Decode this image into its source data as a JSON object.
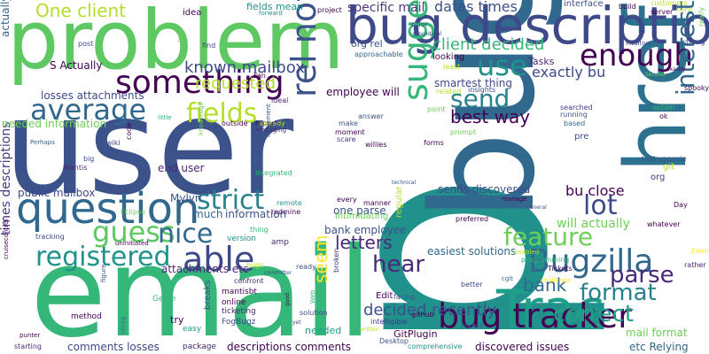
{
  "words": [
    {
      "id": "p",
      "text": "p",
      "color": "#21918c"
    },
    {
      "id": "user",
      "text": "user",
      "color": "#3b528b"
    },
    {
      "id": "email",
      "text": "email",
      "color": "#35b779"
    },
    {
      "id": "bug",
      "text": "bug",
      "color": "#31688e"
    },
    {
      "id": "problem",
      "text": "problem",
      "color": "#5ec962"
    },
    {
      "id": "href",
      "text": "href",
      "color": "#2c728e"
    },
    {
      "id": "bug-description",
      "text": "bug description",
      "color": "#3e4989"
    },
    {
      "id": "trac",
      "text": "Trac",
      "color": "#1f9e89"
    },
    {
      "id": "question",
      "text": "question",
      "color": "#31688e"
    },
    {
      "id": "bug-tracker",
      "text": "bug tracker",
      "color": "#440154"
    },
    {
      "id": "bugzilla",
      "text": "Bugzilla",
      "color": "#31688e"
    },
    {
      "id": "suggestions",
      "text": "suggestions",
      "color": "#35b779"
    },
    {
      "id": "rel-nofollow",
      "text": "rel nofollow",
      "color": "#3b528b"
    },
    {
      "id": "something",
      "text": "something",
      "color": "#440154"
    },
    {
      "id": "average",
      "text": "average",
      "color": "#31688e"
    },
    {
      "id": "able",
      "text": "able",
      "color": "#3e4989"
    },
    {
      "id": "registered",
      "text": "registered",
      "color": "#21918c"
    },
    {
      "id": "guess",
      "text": "guess",
      "color": "#5ec962"
    },
    {
      "id": "strict",
      "text": "strict",
      "color": "#26828e"
    },
    {
      "id": "nice",
      "text": "nice",
      "color": "#31688e"
    },
    {
      "id": "fields",
      "text": "fields",
      "color": "#b5de2b"
    },
    {
      "id": "enough",
      "text": "enough",
      "color": "#440154"
    },
    {
      "id": "use",
      "text": "use",
      "color": "#21918c"
    },
    {
      "id": "interested",
      "text": "interested",
      "color": "#31688e"
    },
    {
      "id": "lot",
      "text": "lot",
      "color": "#3e4989"
    },
    {
      "id": "send",
      "text": "send",
      "color": "#26828e"
    },
    {
      "id": "feature",
      "text": "feature",
      "color": "#6ece58"
    },
    {
      "id": "parse",
      "text": "parse",
      "color": "#482878"
    },
    {
      "id": "format",
      "text": "format",
      "color": "#26828e"
    },
    {
      "id": "correct",
      "text": "correct",
      "color": "#1f9e89"
    },
    {
      "id": "hear",
      "text": "hear",
      "color": "#482878"
    },
    {
      "id": "best-way",
      "text": "best way",
      "color": "#440154"
    },
    {
      "id": "one-client",
      "text": "One client",
      "color": "#b5de2b"
    },
    {
      "id": "bank",
      "text": "bank",
      "color": "#31688e"
    },
    {
      "id": "letters",
      "text": "letters",
      "color": "#482878"
    },
    {
      "id": "seem",
      "text": "seem",
      "color": "#fde725"
    },
    {
      "id": "decided-recently",
      "text": "decided recently",
      "color": "#3b528b"
    },
    {
      "id": "client-decided",
      "text": "client decided",
      "color": "#35b779"
    },
    {
      "id": "known-mailbox",
      "text": "known mailbox",
      "color": "#3e4989"
    },
    {
      "id": "requested",
      "text": "requested",
      "color": "#b5de2b"
    },
    {
      "id": "dates-times",
      "text": "dates times",
      "color": "#3b528b"
    },
    {
      "id": "specific-mail",
      "text": "specific mail",
      "color": "#443983"
    },
    {
      "id": "exactly-bu",
      "text": "exactly bu",
      "color": "#3e4989"
    },
    {
      "id": "bu-close",
      "text": "bu close",
      "color": "#440154"
    },
    {
      "id": "will-actually",
      "text": "will actually",
      "color": "#6ece58"
    },
    {
      "id": "sends-discovered",
      "text": "sends discovered",
      "color": "#3e4989"
    },
    {
      "id": "smartest-thing",
      "text": "smartest thing",
      "color": "#3e4989"
    },
    {
      "id": "easiest-solutions",
      "text": "easiest solutions",
      "color": "#31688e"
    },
    {
      "id": "discovered-issues",
      "text": "discovered issues",
      "color": "#440154"
    },
    {
      "id": "etc-relying",
      "text": "etc Relying",
      "color": "#31688e"
    },
    {
      "id": "mail-format",
      "text": "mail format",
      "color": "#6ece58"
    },
    {
      "id": "descriptions-comments",
      "text": "descriptions comments",
      "color": "#440154"
    },
    {
      "id": "comments-losses",
      "text": "comments losses",
      "color": "#3e4989"
    },
    {
      "id": "times-descriptions",
      "text": "times descriptions",
      "color": "#443983"
    },
    {
      "id": "actually-look",
      "text": "actually look",
      "color": "#31688e"
    },
    {
      "id": "losses-attachments",
      "text": "losses attachments",
      "color": "#3e4989"
    },
    {
      "id": "public-mailbox",
      "text": "public mailbox",
      "color": "#3e4989"
    },
    {
      "id": "attachments-etc",
      "text": "attachments etc",
      "color": "#482878"
    },
    {
      "id": "bank-employee",
      "text": "bank employee",
      "color": "#3b528b"
    },
    {
      "id": "employee-will",
      "text": "employee will",
      "color": "#440154"
    },
    {
      "id": "one-parse",
      "text": "one parse",
      "color": "#3b528b"
    },
    {
      "id": "end-user",
      "text": "end user",
      "color": "#482878"
    },
    {
      "id": "mylyn",
      "text": "Mylyn",
      "color": "#3b528b"
    },
    {
      "id": "much",
      "text": "much",
      "color": "#31688e"
    },
    {
      "id": "information",
      "text": "information",
      "color": "#3b528b"
    },
    {
      "id": "needed-information",
      "text": "needed information",
      "color": "#6ece58"
    },
    {
      "id": "s-actually",
      "text": "S Actually",
      "color": "#440154"
    },
    {
      "id": "tasks",
      "text": "Tasks",
      "color": "#482878"
    },
    {
      "id": "looking",
      "text": "looking",
      "color": "#440154"
    },
    {
      "id": "org-rel",
      "text": "org rel",
      "color": "#3b528b"
    },
    {
      "id": "fields-mean",
      "text": "fields mean",
      "color": "#21918c"
    },
    {
      "id": "gitplugin",
      "text": "GitPlugin",
      "color": "#440154"
    },
    {
      "id": "needed",
      "text": "needed",
      "color": "#1f9e89"
    },
    {
      "id": "idea",
      "text": "idea",
      "color": "#440154"
    },
    {
      "id": "interface",
      "text": "interface",
      "color": "#3b528b"
    },
    {
      "id": "pre",
      "text": "pre",
      "color": "#3e4989"
    },
    {
      "id": "ci",
      "text": "CI",
      "color": "#31688e"
    },
    {
      "id": "org",
      "text": "org",
      "color": "#443983"
    },
    {
      "id": "git",
      "text": "git",
      "color": "#b5de2b"
    },
    {
      "id": "thebuggenie",
      "text": "thebuggenie",
      "color": "#3b528b"
    },
    {
      "id": "whatever",
      "text": "whatever",
      "color": "#440154"
    },
    {
      "id": "edit",
      "text": "Edit",
      "color": "#440154"
    },
    {
      "id": "method",
      "text": "method",
      "color": "#440154"
    },
    {
      "id": "mantisbt",
      "text": "mantisbt",
      "color": "#440154"
    },
    {
      "id": "online",
      "text": "online",
      "color": "#440154"
    },
    {
      "id": "ticketing",
      "text": "ticketing",
      "color": "#482878"
    },
    {
      "id": "fogbugz",
      "text": "FogBugz",
      "color": "#3e4989"
    },
    {
      "id": "genie",
      "text": "Genie",
      "color": "#35b779"
    },
    {
      "id": "package",
      "text": "package",
      "color": "#482878"
    },
    {
      "id": "amp",
      "text": "amp",
      "color": "#482878"
    },
    {
      "id": "version",
      "text": "version",
      "color": "#21918c"
    },
    {
      "id": "confront",
      "text": "confront",
      "color": "#482878"
    },
    {
      "id": "starting",
      "text": "starting",
      "color": "#482878"
    },
    {
      "id": "tickets",
      "text": "Tickets",
      "color": "#440154"
    },
    {
      "id": "programming",
      "text": "programming",
      "color": "#35b779"
    },
    {
      "id": "intimidating",
      "text": "intimidating",
      "color": "#6ece58"
    },
    {
      "id": "redmine",
      "text": "redmine",
      "color": "#440154"
    },
    {
      "id": "solution",
      "text": "solution",
      "color": "#3e4989"
    },
    {
      "id": "better",
      "text": "better",
      "color": "#3e4989"
    },
    {
      "id": "please",
      "text": "please",
      "color": "#31688e"
    },
    {
      "id": "comprehensive",
      "text": "comprehensive",
      "color": "#21918c"
    },
    {
      "id": "desktop",
      "text": "Desktop",
      "color": "#3b528b"
    },
    {
      "id": "intelligible",
      "text": "intelligible",
      "color": "#443983"
    },
    {
      "id": "post",
      "text": "post",
      "color": "#3e4989"
    },
    {
      "id": "eclipse",
      "text": "Eclipse",
      "color": "#6ece58"
    },
    {
      "id": "spooky",
      "text": "spooky",
      "color": "#440154"
    },
    {
      "id": "rather",
      "text": "rather",
      "color": "#482878"
    },
    {
      "id": "even",
      "text": "Even",
      "color": "#fde725"
    },
    {
      "id": "day",
      "text": "Day",
      "color": "#440154"
    },
    {
      "id": "option",
      "text": "option",
      "color": "#35b779"
    },
    {
      "id": "ok",
      "text": "ok",
      "color": "#440154"
    },
    {
      "id": "searched",
      "text": "searched",
      "color": "#443983"
    },
    {
      "id": "running",
      "text": "running",
      "color": "#3b528b"
    },
    {
      "id": "based",
      "text": "based",
      "color": "#31688e"
    },
    {
      "id": "answer",
      "text": "answer",
      "color": "#3b528b"
    },
    {
      "id": "make",
      "text": "make",
      "color": "#3b528b"
    },
    {
      "id": "moment",
      "text": "moment",
      "color": "#440154"
    },
    {
      "id": "scare",
      "text": "scare",
      "color": "#443983"
    },
    {
      "id": "forms",
      "text": "forms",
      "color": "#440154"
    },
    {
      "id": "prompt",
      "text": "prompt",
      "color": "#6ece58"
    },
    {
      "id": "point",
      "text": "point",
      "color": "#6ece58"
    },
    {
      "id": "insights",
      "text": "insights",
      "color": "#3e4989"
    },
    {
      "id": "related",
      "text": "related",
      "color": "#b5de2b"
    },
    {
      "id": "least",
      "text": "least",
      "color": "#b5de2b"
    },
    {
      "id": "approachable",
      "text": "approachable",
      "color": "#31688e"
    },
    {
      "id": "project",
      "text": "project",
      "color": "#440154"
    },
    {
      "id": "prior",
      "text": "prior",
      "color": "#3b528b"
    },
    {
      "id": "procedural",
      "text": "procedural",
      "color": "#3e4989"
    },
    {
      "id": "build",
      "text": "build",
      "color": "#440154"
    },
    {
      "id": "customers",
      "text": "customers",
      "color": "#b5de2b"
    },
    {
      "id": "server",
      "text": "server",
      "color": "#440154"
    },
    {
      "id": "strong",
      "text": "strong",
      "color": "#3b528b"
    },
    {
      "id": "mine",
      "text": "mine",
      "color": "#b5de2b"
    },
    {
      "id": "really",
      "text": "really",
      "color": "#6ece58"
    },
    {
      "id": "intuitive",
      "text": "intuitive",
      "color": "#3e4989"
    },
    {
      "id": "second",
      "text": "Second",
      "color": "#6ece58"
    },
    {
      "id": "forward",
      "text": "forward",
      "color": "#21918c"
    },
    {
      "id": "find",
      "text": "find",
      "color": "#3e4989"
    },
    {
      "id": "loss",
      "text": "loss",
      "color": "#6ece58"
    },
    {
      "id": "fan",
      "text": "Fan",
      "color": "#440154"
    },
    {
      "id": "report",
      "text": "report",
      "color": "#440154"
    },
    {
      "id": "managing",
      "text": "managing",
      "color": "#482878"
    },
    {
      "id": "ideal",
      "text": "ideal",
      "color": "#482878"
    },
    {
      "id": "outside",
      "text": "outside",
      "color": "#440154"
    },
    {
      "id": "already",
      "text": "already",
      "color": "#b5de2b"
    },
    {
      "id": "implement",
      "text": "implement",
      "color": "#3b528b"
    },
    {
      "id": "integrated",
      "text": "integrated",
      "color": "#35b779"
    },
    {
      "id": "knowledge",
      "text": "knowledge",
      "color": "#6ece58"
    },
    {
      "id": "wiki",
      "text": "wiki",
      "color": "#3e4989"
    },
    {
      "id": "code",
      "text": "code",
      "color": "#440154"
    },
    {
      "id": "little",
      "text": "little",
      "color": "#35b779"
    },
    {
      "id": "big",
      "text": "big",
      "color": "#3e4989"
    },
    {
      "id": "mantis",
      "text": "Mantis",
      "color": "#482878"
    },
    {
      "id": "api",
      "text": "API",
      "color": "#3e4989"
    },
    {
      "id": "perhaps",
      "text": "Perhaps",
      "color": "#31688e"
    },
    {
      "id": "tracking",
      "text": "tracking",
      "color": "#3e4989"
    },
    {
      "id": "uninitiated",
      "text": "uninitiated",
      "color": "#440154"
    },
    {
      "id": "clicky",
      "text": "clicky",
      "color": "#31688e"
    },
    {
      "id": "figure",
      "text": "figure",
      "color": "#3b528b"
    },
    {
      "id": "try",
      "text": "try",
      "color": "#440154"
    },
    {
      "id": "easy",
      "text": "easy",
      "color": "#1f9e89"
    },
    {
      "id": "breaks",
      "text": "breaks",
      "color": "#3b528b"
    },
    {
      "id": "thing",
      "text": "thing",
      "color": "#35b779"
    },
    {
      "id": "remote",
      "text": "remote",
      "color": "#21918c"
    },
    {
      "id": "every",
      "text": "every",
      "color": "#440154"
    },
    {
      "id": "manner",
      "text": "manner",
      "color": "#440154"
    },
    {
      "id": "willies",
      "text": "willies",
      "color": "#440154"
    },
    {
      "id": "github",
      "text": "github",
      "color": "#440154"
    },
    {
      "id": "regular",
      "text": "regular",
      "color": "#b5de2b"
    },
    {
      "id": "preferred",
      "text": "preferred",
      "color": "#440154"
    },
    {
      "id": "technical",
      "text": "technical",
      "color": "#3b528b"
    },
    {
      "id": "cgit",
      "text": "cgit",
      "color": "#31688e"
    },
    {
      "id": "challenge",
      "text": "challenge",
      "color": "#fde725"
    },
    {
      "id": "enabled",
      "text": "enabled",
      "color": "#b5de2b"
    },
    {
      "id": "general",
      "text": "general",
      "color": "#3b528b"
    },
    {
      "id": "ready",
      "text": "ready",
      "color": "#3b528b"
    },
    {
      "id": "committer",
      "text": "committer",
      "color": "#3b528b"
    },
    {
      "id": "cruisecontrol",
      "text": "cruisecontrol",
      "color": "#440154"
    },
    {
      "id": "punter",
      "text": "punter",
      "color": "#440154"
    },
    {
      "id": "bugs",
      "text": "bugs",
      "color": "#b5de2b"
    },
    {
      "id": "good",
      "text": "good",
      "color": "#440154"
    },
    {
      "id": "yet",
      "text": "yet",
      "color": "#3e4989"
    },
    {
      "id": "written",
      "text": "written",
      "color": "#b5de2b"
    },
    {
      "id": "broken",
      "text": "broken",
      "color": "#443983"
    },
    {
      "id": "facing",
      "text": "facing",
      "color": "#3b528b"
    },
    {
      "id": "web",
      "text": "Web",
      "color": "#35b779"
    },
    {
      "id": "exactly",
      "text": "exactly",
      "color": "#440154"
    },
    {
      "id": "manage",
      "text": "manage",
      "color": "#440154"
    }
  ]
}
